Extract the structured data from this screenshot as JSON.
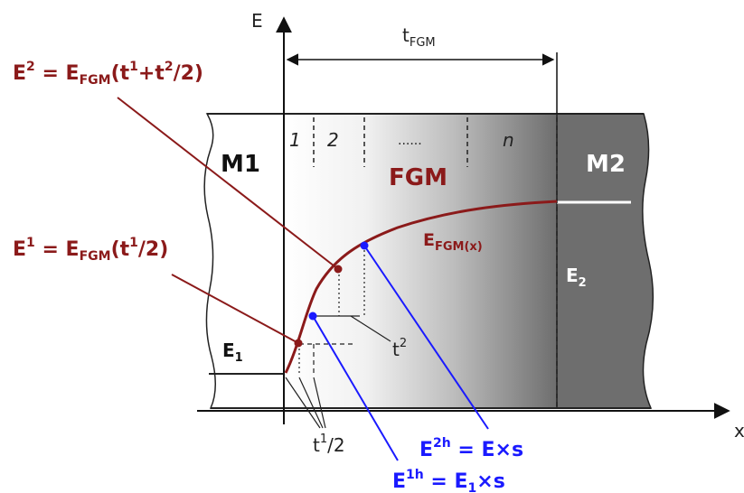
{
  "axes": {
    "y_label": "E",
    "x_label": "x"
  },
  "materials": {
    "left": "M1",
    "middle": "FGM",
    "right": "M2"
  },
  "thickness": {
    "label": "t",
    "sub": "FGM"
  },
  "layers": [
    "1",
    "2",
    "......",
    "n"
  ],
  "curve": {
    "label": "E",
    "sub": "FGM(x)"
  },
  "moduli": {
    "e1": {
      "base": "E",
      "sub": "1"
    },
    "e2": {
      "base": "E",
      "sub": "2"
    }
  },
  "formulas": {
    "e2_eq": {
      "lhs": "E",
      "lhs_sup": "2",
      "eq": " = E",
      "eq_sub": "FGM",
      "open": "(t",
      "a_sup": "1",
      "mid": "+t",
      "b_sup": "2",
      "tail": "/2)"
    },
    "e1_eq": {
      "lhs": "E",
      "lhs_sup": "1",
      "eq": " = E",
      "eq_sub": "FGM",
      "open": "(t",
      "a_sup": "1",
      "tail": "/2)"
    },
    "e2h_eq": {
      "lhs": "E",
      "lhs_sup": "2h",
      "rhs": " = E×s"
    },
    "e1h_eq": {
      "lhs": "E",
      "lhs_sup": "1h",
      "rhs": " = E",
      "rhs_sub": "1",
      "tail": "×s"
    }
  },
  "steps": {
    "t2": {
      "base": "t",
      "sup": "2"
    },
    "t1_half": {
      "base": "t",
      "sup": "1",
      "tail": "/2"
    }
  },
  "colors": {
    "curve": "#8b1a1a",
    "formula_dark": "#8b1a1a",
    "formula_blue": "#1a1aff",
    "m2_fill": "#6e6e6e",
    "fgm_start": "#ffffff",
    "fgm_end": "#6e6e6e"
  }
}
